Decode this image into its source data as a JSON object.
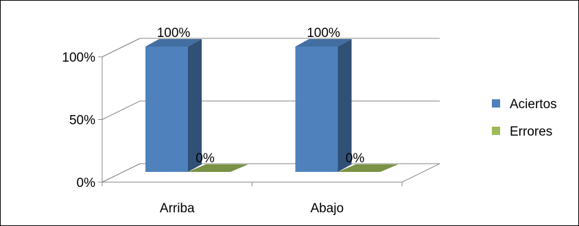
{
  "chart_data": {
    "type": "bar",
    "title": "",
    "xlabel": "",
    "ylabel": "",
    "categories": [
      "Arriba",
      "Abajo"
    ],
    "series": [
      {
        "name": "Aciertos",
        "values": [
          100,
          100
        ],
        "labels": [
          "100%",
          "100%"
        ],
        "color": "#4F81BD"
      },
      {
        "name": "Errores",
        "values": [
          0,
          0
        ],
        "labels": [
          "0%",
          "0%"
        ],
        "color": "#9BBB59"
      }
    ],
    "y_ticks": [
      {
        "value": 0,
        "label": "0%"
      },
      {
        "value": 50,
        "label": "50%"
      },
      {
        "value": 100,
        "label": "100%"
      }
    ],
    "ylim": [
      0,
      100
    ],
    "grid": true,
    "three_d": true,
    "legend_position": "right"
  }
}
